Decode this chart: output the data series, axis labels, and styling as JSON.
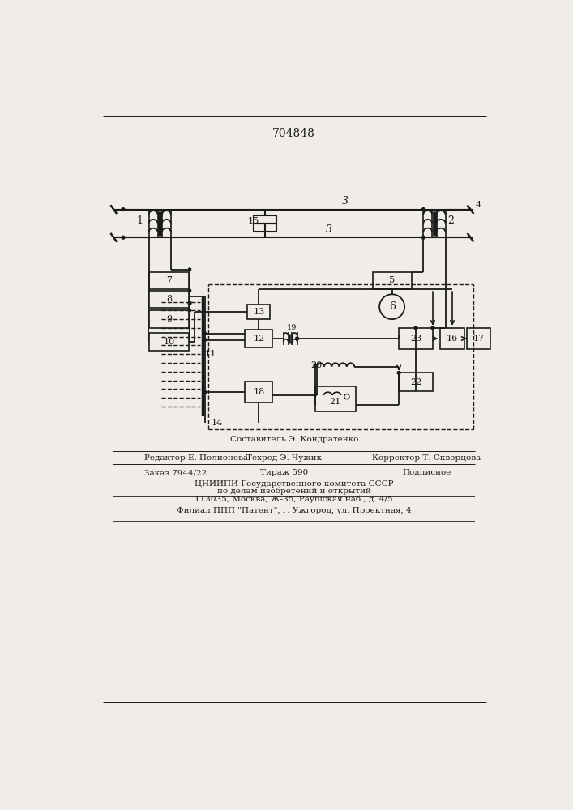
{
  "title": "704848",
  "bg_color": "#f0ede8",
  "line_color": "#1a1a1a",
  "footer_lines": [
    {
      "center": "Составитель Э. Кондратенко"
    },
    {
      "left": "Редактор Е. Полионова",
      "center": "Техред Э. Чужик",
      "right": "Корректор Т. Скворцова"
    },
    {
      "left": "Заказ 7944/22",
      "center": "Тираж 590",
      "right": "Подписное"
    },
    {
      "center": "ЦНИИПИ Государственного комитета СССР"
    },
    {
      "center": "по делам изобретений и открытий"
    },
    {
      "center": "113035, Москва, Ж-35, Раушская наб., д. 4/5"
    },
    {
      "center": "Филиал ППП \"Патент\", г. Ужгород, ул. Проектная, 4"
    }
  ]
}
